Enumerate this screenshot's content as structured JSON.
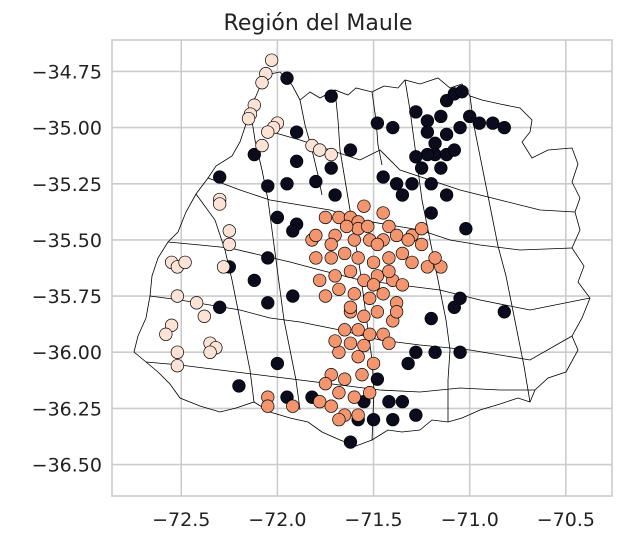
{
  "chart_data": {
    "type": "scatter",
    "title": "Región del Maule",
    "grid": true,
    "x_ticks": [
      "−72.5",
      "−72.0",
      "−71.5",
      "−71.0",
      "−70.5"
    ],
    "y_ticks": [
      "−34.75",
      "−35.00",
      "−35.25",
      "−35.50",
      "−35.75",
      "−36.00",
      "−36.25",
      "−36.50"
    ],
    "x_tick_values": [
      -72.5,
      -72.0,
      -71.5,
      -71.0,
      -70.5
    ],
    "y_tick_values": [
      -34.75,
      -35.0,
      -35.25,
      -35.5,
      -35.75,
      -36.0,
      -36.25,
      -36.5
    ],
    "xlim": [
      -72.86,
      -70.26
    ],
    "ylim": [
      -36.64,
      -34.61
    ],
    "colors": {
      "dark": "#0b0b1e",
      "salmon": "#f3956f",
      "light": "#fce3d6"
    },
    "series": [
      {
        "color_key": "dark",
        "points": [
          [
            -71.95,
            -34.78
          ],
          [
            -71.72,
            -34.86
          ],
          [
            -71.9,
            -35.02
          ],
          [
            -71.62,
            -35.1
          ],
          [
            -71.48,
            -34.98
          ],
          [
            -71.4,
            -35.0
          ],
          [
            -71.28,
            -34.93
          ],
          [
            -71.22,
            -34.97
          ],
          [
            -71.15,
            -34.95
          ],
          [
            -71.12,
            -34.88
          ],
          [
            -71.08,
            -34.85
          ],
          [
            -71.04,
            -34.84
          ],
          [
            -71.22,
            -35.02
          ],
          [
            -71.18,
            -35.07
          ],
          [
            -71.12,
            -35.03
          ],
          [
            -71.18,
            -35.12
          ],
          [
            -71.12,
            -35.12
          ],
          [
            -71.22,
            -35.12
          ],
          [
            -71.15,
            -35.18
          ],
          [
            -71.08,
            -35.1
          ],
          [
            -71.05,
            -35.0
          ],
          [
            -71.0,
            -34.95
          ],
          [
            -70.95,
            -34.98
          ],
          [
            -70.88,
            -34.98
          ],
          [
            -70.82,
            -35.0
          ],
          [
            -71.25,
            -35.18
          ],
          [
            -71.28,
            -35.13
          ],
          [
            -71.3,
            -35.25
          ],
          [
            -71.38,
            -35.25
          ],
          [
            -71.45,
            -35.22
          ],
          [
            -71.35,
            -35.3
          ],
          [
            -71.2,
            -35.25
          ],
          [
            -71.12,
            -35.3
          ],
          [
            -71.2,
            -35.38
          ],
          [
            -71.02,
            -35.45
          ],
          [
            -72.12,
            -35.12
          ],
          [
            -71.9,
            -35.15
          ],
          [
            -71.72,
            -35.18
          ],
          [
            -71.8,
            -35.24
          ],
          [
            -71.7,
            -35.3
          ],
          [
            -72.3,
            -35.22
          ],
          [
            -72.05,
            -35.26
          ],
          [
            -71.95,
            -35.25
          ],
          [
            -72.0,
            -35.4
          ],
          [
            -71.9,
            -35.43
          ],
          [
            -71.92,
            -35.46
          ],
          [
            -72.05,
            -35.58
          ],
          [
            -72.25,
            -35.62
          ],
          [
            -72.12,
            -35.68
          ],
          [
            -72.05,
            -35.78
          ],
          [
            -71.92,
            -35.75
          ],
          [
            -72.3,
            -35.8
          ],
          [
            -71.2,
            -35.85
          ],
          [
            -71.08,
            -35.8
          ],
          [
            -71.05,
            -35.76
          ],
          [
            -70.82,
            -35.82
          ],
          [
            -71.28,
            -36.0
          ],
          [
            -71.32,
            -36.05
          ],
          [
            -71.18,
            -36.0
          ],
          [
            -71.05,
            -36.0
          ],
          [
            -72.0,
            -36.05
          ],
          [
            -72.2,
            -36.15
          ],
          [
            -71.95,
            -36.2
          ],
          [
            -71.82,
            -36.2
          ],
          [
            -71.35,
            -36.22
          ],
          [
            -71.4,
            -36.3
          ],
          [
            -71.5,
            -36.3
          ],
          [
            -71.58,
            -36.3
          ],
          [
            -71.62,
            -36.4
          ],
          [
            -71.28,
            -36.28
          ],
          [
            -71.42,
            -36.22
          ],
          [
            -71.48,
            -36.12
          ],
          [
            -71.55,
            -36.22
          ]
        ]
      },
      {
        "color_key": "salmon",
        "points": [
          [
            -71.75,
            -35.4
          ],
          [
            -71.68,
            -35.4
          ],
          [
            -71.62,
            -35.4
          ],
          [
            -71.55,
            -35.35
          ],
          [
            -71.45,
            -35.38
          ],
          [
            -71.42,
            -35.44
          ],
          [
            -71.58,
            -35.42
          ],
          [
            -71.7,
            -35.48
          ],
          [
            -71.6,
            -35.5
          ],
          [
            -71.52,
            -35.5
          ],
          [
            -71.45,
            -35.5
          ],
          [
            -71.38,
            -35.48
          ],
          [
            -71.3,
            -35.48
          ],
          [
            -71.25,
            -35.52
          ],
          [
            -71.82,
            -35.5
          ],
          [
            -71.8,
            -35.58
          ],
          [
            -71.72,
            -35.58
          ],
          [
            -71.65,
            -35.56
          ],
          [
            -71.58,
            -35.58
          ],
          [
            -71.5,
            -35.6
          ],
          [
            -71.42,
            -35.58
          ],
          [
            -71.35,
            -35.56
          ],
          [
            -71.3,
            -35.6
          ],
          [
            -71.22,
            -35.62
          ],
          [
            -71.15,
            -35.62
          ],
          [
            -71.78,
            -35.68
          ],
          [
            -71.7,
            -35.66
          ],
          [
            -71.62,
            -35.64
          ],
          [
            -71.55,
            -35.68
          ],
          [
            -71.48,
            -35.66
          ],
          [
            -71.4,
            -35.68
          ],
          [
            -71.35,
            -35.7
          ],
          [
            -71.75,
            -35.75
          ],
          [
            -71.68,
            -35.72
          ],
          [
            -71.6,
            -35.74
          ],
          [
            -71.52,
            -35.76
          ],
          [
            -71.45,
            -35.74
          ],
          [
            -71.38,
            -35.78
          ],
          [
            -71.62,
            -35.82
          ],
          [
            -71.55,
            -35.84
          ],
          [
            -71.48,
            -35.82
          ],
          [
            -71.4,
            -35.86
          ],
          [
            -71.65,
            -35.9
          ],
          [
            -71.58,
            -35.9
          ],
          [
            -71.52,
            -35.92
          ],
          [
            -71.45,
            -35.92
          ],
          [
            -71.42,
            -35.96
          ],
          [
            -71.62,
            -35.96
          ],
          [
            -71.68,
            -36.0
          ],
          [
            -71.58,
            -36.02
          ],
          [
            -71.5,
            -36.05
          ],
          [
            -71.72,
            -36.1
          ],
          [
            -71.65,
            -36.12
          ],
          [
            -71.56,
            -36.1
          ],
          [
            -71.75,
            -36.14
          ],
          [
            -71.68,
            -36.18
          ],
          [
            -71.6,
            -36.2
          ],
          [
            -71.52,
            -36.18
          ],
          [
            -71.78,
            -36.22
          ],
          [
            -71.72,
            -36.24
          ],
          [
            -71.65,
            -36.28
          ],
          [
            -71.58,
            -36.28
          ],
          [
            -71.68,
            -36.3
          ],
          [
            -72.05,
            -36.2
          ],
          [
            -72.05,
            -36.24
          ],
          [
            -71.92,
            -36.24
          ],
          [
            -71.8,
            -35.48
          ],
          [
            -71.72,
            -35.52
          ],
          [
            -71.48,
            -35.52
          ],
          [
            -71.32,
            -35.5
          ],
          [
            -71.42,
            -35.64
          ],
          [
            -71.25,
            -35.45
          ],
          [
            -71.18,
            -35.58
          ],
          [
            -71.58,
            -35.45
          ],
          [
            -71.64,
            -35.44
          ],
          [
            -71.53,
            -35.44
          ],
          [
            -71.62,
            -35.8
          ],
          [
            -71.5,
            -35.7
          ],
          [
            -71.38,
            -35.82
          ],
          [
            -71.7,
            -35.95
          ],
          [
            -71.55,
            -35.97
          ]
        ]
      },
      {
        "color_key": "light",
        "points": [
          [
            -72.03,
            -34.7
          ],
          [
            -72.06,
            -34.76
          ],
          [
            -72.08,
            -34.8
          ],
          [
            -72.12,
            -34.9
          ],
          [
            -72.14,
            -34.94
          ],
          [
            -72.15,
            -34.96
          ],
          [
            -72.0,
            -34.98
          ],
          [
            -72.02,
            -35.0
          ],
          [
            -72.05,
            -35.02
          ],
          [
            -72.08,
            -35.08
          ],
          [
            -71.82,
            -35.08
          ],
          [
            -71.78,
            -35.1
          ],
          [
            -71.72,
            -35.12
          ],
          [
            -72.3,
            -35.32
          ],
          [
            -72.3,
            -35.34
          ],
          [
            -72.25,
            -35.46
          ],
          [
            -72.25,
            -35.52
          ],
          [
            -72.28,
            -35.62
          ],
          [
            -72.55,
            -35.6
          ],
          [
            -72.52,
            -35.62
          ],
          [
            -72.48,
            -35.6
          ],
          [
            -72.52,
            -35.75
          ],
          [
            -72.42,
            -35.78
          ],
          [
            -72.38,
            -35.84
          ],
          [
            -72.55,
            -35.88
          ],
          [
            -72.58,
            -35.92
          ],
          [
            -72.35,
            -35.96
          ],
          [
            -72.32,
            -35.98
          ],
          [
            -72.35,
            -36.0
          ],
          [
            -72.52,
            -36.06
          ],
          [
            -72.52,
            -36.0
          ]
        ]
      }
    ]
  }
}
